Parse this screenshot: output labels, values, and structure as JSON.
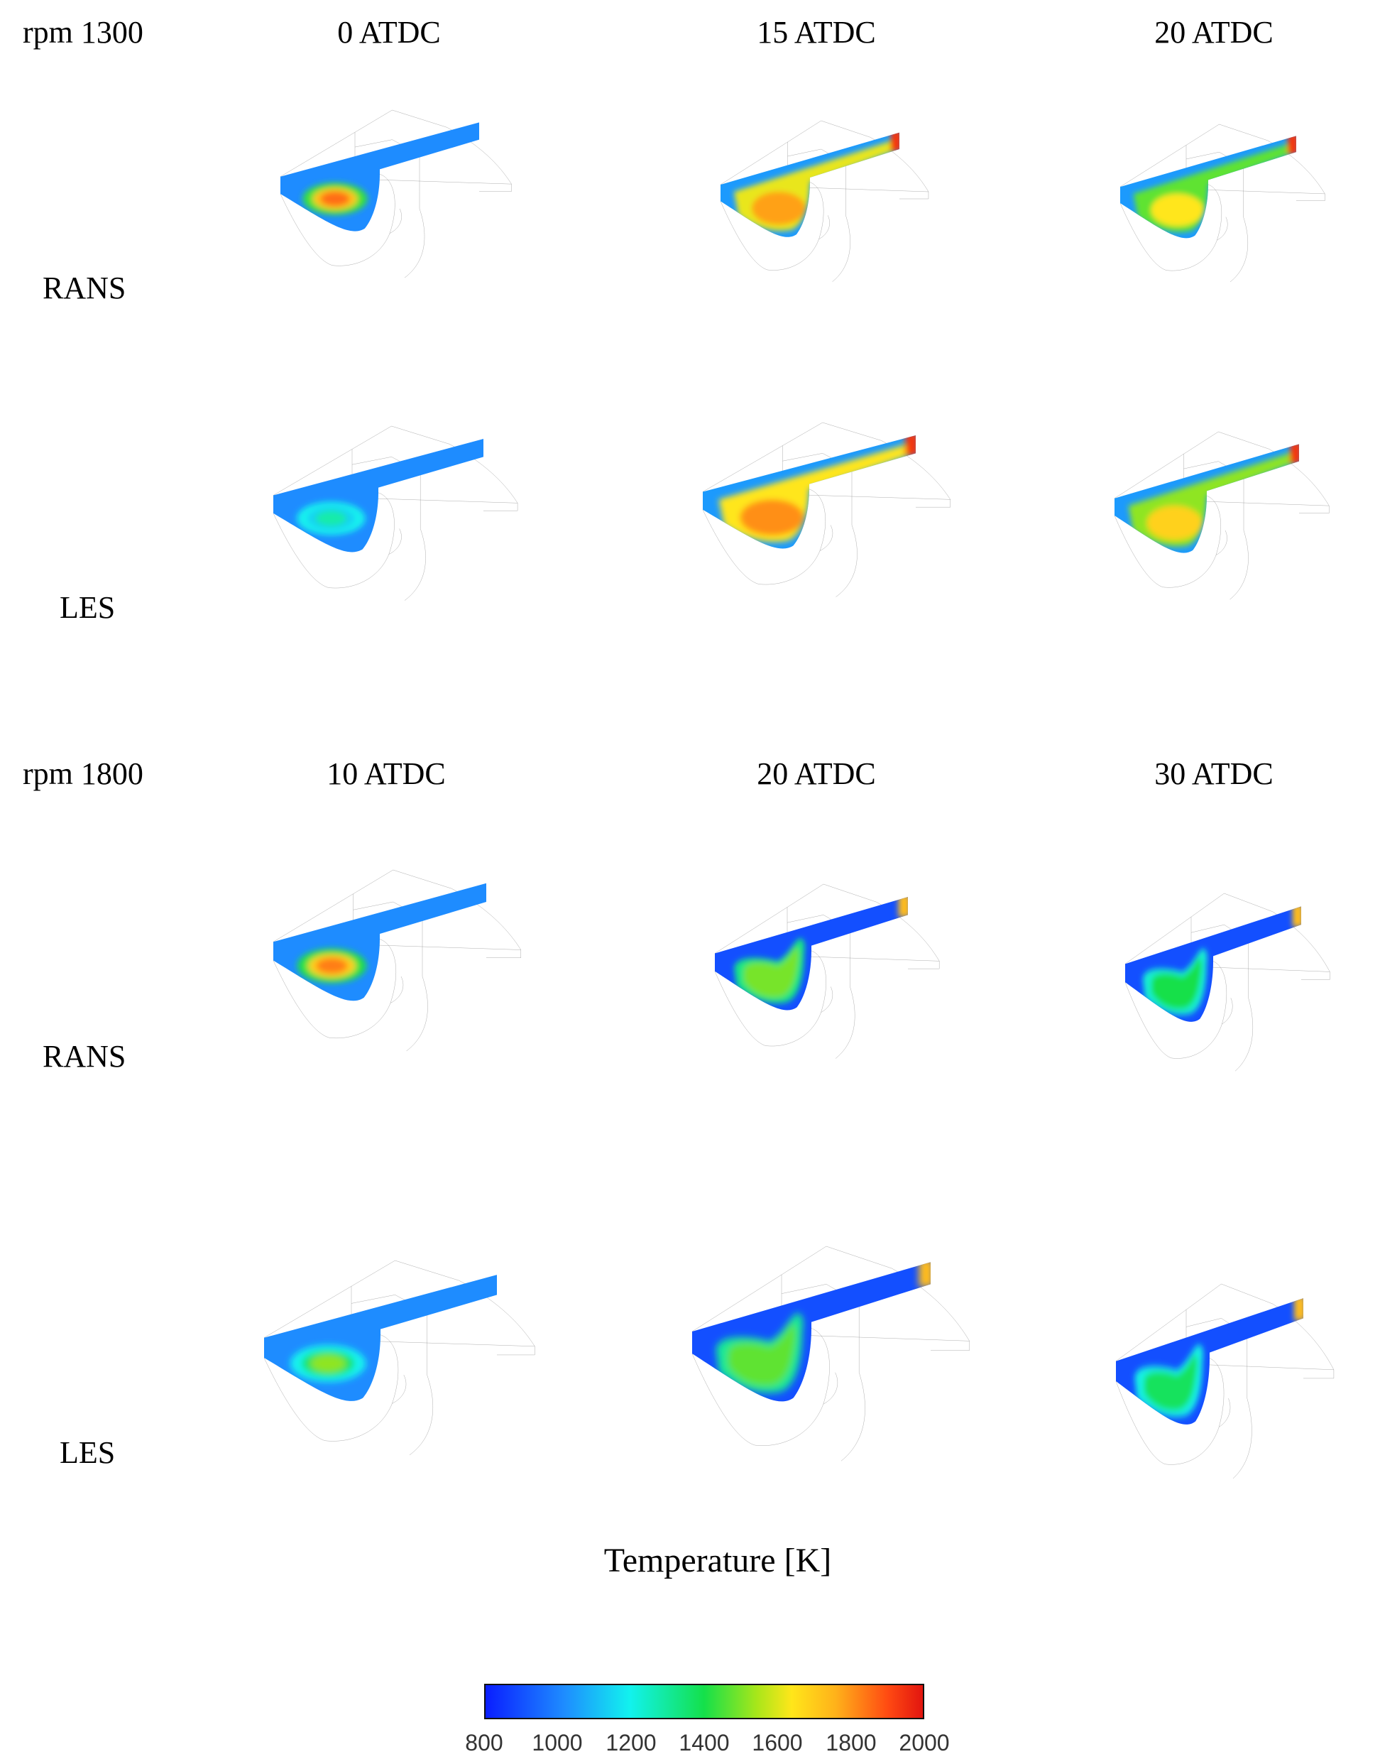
{
  "groups": [
    {
      "rpm_label": "rpm 1300",
      "headers": [
        "0 ATDC",
        "15 ATDC",
        "20 ATDC"
      ],
      "rows": [
        {
          "label": "RANS",
          "panels": [
            {
              "pattern": "core",
              "core_level": 0.88
            },
            {
              "pattern": "broad",
              "core_level": 0.82
            },
            {
              "pattern": "broad",
              "core_level": 0.7
            }
          ]
        },
        {
          "label": "LES",
          "panels": [
            {
              "pattern": "core",
              "core_level": 0.4
            },
            {
              "pattern": "broad",
              "core_level": 0.84
            },
            {
              "pattern": "broad",
              "core_level": 0.74
            }
          ]
        }
      ]
    },
    {
      "rpm_label": "rpm 1800",
      "headers": [
        "10 ATDC",
        "20 ATDC",
        "30 ATDC"
      ],
      "rows": [
        {
          "label": "RANS",
          "panels": [
            {
              "pattern": "core",
              "core_level": 0.86
            },
            {
              "pattern": "plume",
              "core_level": 0.58
            },
            {
              "pattern": "plume",
              "core_level": 0.5
            }
          ]
        },
        {
          "label": "LES",
          "panels": [
            {
              "pattern": "core",
              "core_level": 0.6
            },
            {
              "pattern": "plume",
              "core_level": 0.56
            },
            {
              "pattern": "plume",
              "core_level": 0.48
            }
          ]
        }
      ]
    }
  ],
  "colorbar": {
    "title": "Temperature [K]",
    "min": 800,
    "max": 2000,
    "ticks": [
      "800",
      "1000",
      "1200",
      "1400",
      "1600",
      "1800",
      "2000"
    ]
  }
}
